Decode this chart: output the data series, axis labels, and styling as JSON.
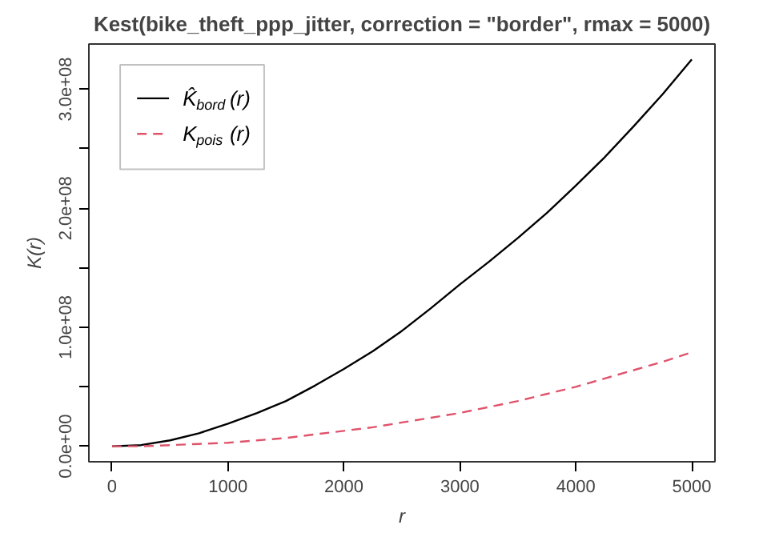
{
  "chart_data": {
    "type": "line",
    "title": "Kest(bike_theft_ppp_jitter, correction = \"border\", rmax = 5000)",
    "xlabel": "r",
    "ylabel": "K(r)",
    "x": [
      0,
      250,
      500,
      750,
      1000,
      1250,
      1500,
      1750,
      2000,
      2250,
      2500,
      2750,
      3000,
      3250,
      3500,
      3750,
      4000,
      4250,
      4500,
      4750,
      5000
    ],
    "series": [
      {
        "name": "K̂$_{bord}$(r)",
        "color": "#000000",
        "line_style": "solid",
        "values": [
          0,
          1000000,
          5000000,
          11000000,
          19000000,
          28000000,
          38000000,
          51000000,
          65000000,
          80000000,
          97000000,
          116000000,
          136000000,
          155000000,
          175000000,
          196000000,
          219000000,
          243000000,
          269000000,
          296000000,
          325000000
        ]
      },
      {
        "name": "K$_{pois}$(r)",
        "color": "#df536b",
        "line_style": "dashed",
        "values": [
          0,
          0,
          1000000,
          2000000,
          3000000,
          5000000,
          7000000,
          10000000,
          13000000,
          16000000,
          20000000,
          24000000,
          28000000,
          33000000,
          38000000,
          44000000,
          50000000,
          57000000,
          64000000,
          71000000,
          79000000
        ]
      }
    ],
    "xlim": [
      -200,
      5200
    ],
    "ylim": [
      -13000000,
      338000000
    ],
    "xticks": [
      0,
      1000,
      2000,
      3000,
      4000,
      5000
    ],
    "yticks": [
      {
        "value": 0,
        "label": "0.0e+00"
      },
      {
        "value": 50000000,
        "label": null
      },
      {
        "value": 100000000,
        "label": "1.0e+08"
      },
      {
        "value": 150000000,
        "label": null
      },
      {
        "value": 200000000,
        "label": "2.0e+08"
      },
      {
        "value": 250000000,
        "label": null
      },
      {
        "value": 300000000,
        "label": "3.0e+08"
      }
    ],
    "grid": false,
    "legend": "top left"
  }
}
